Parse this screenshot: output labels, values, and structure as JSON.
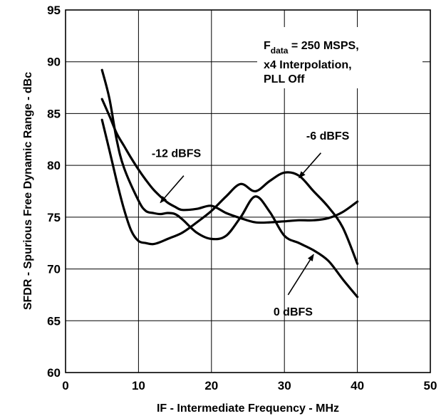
{
  "chart_data": {
    "type": "line",
    "xlabel": "IF - Intermediate Frequency - MHz",
    "ylabel": "SFDR - Spurious Free Dynamic Range - dBc",
    "xlim": [
      0,
      50
    ],
    "ylim": [
      60,
      95
    ],
    "xticks": [
      "0",
      "10",
      "20",
      "30",
      "40",
      "50"
    ],
    "yticks": [
      "60",
      "65",
      "70",
      "75",
      "80",
      "85",
      "90",
      "95"
    ],
    "grid": true,
    "condition": {
      "f_main": "F",
      "f_sub": "data",
      "f_rest": " = 250 MSPS,",
      "line2": "x4 Interpolation,",
      "line3": "PLL Off"
    },
    "series": [
      {
        "name": "0 dBFS",
        "x": [
          5,
          6,
          7,
          8,
          10,
          11,
          12,
          13,
          14,
          15,
          16,
          18,
          20,
          22,
          24,
          26,
          28,
          30,
          32,
          34,
          36,
          38,
          40
        ],
        "y": [
          89.2,
          86.5,
          82.5,
          79.8,
          76.6,
          75.6,
          75.4,
          75.3,
          75.4,
          75.3,
          74.8,
          73.5,
          72.9,
          73.2,
          75.0,
          77.0,
          75.5,
          73.2,
          72.5,
          71.8,
          70.8,
          69.0,
          67.3
        ]
      },
      {
        "name": "-6 dBFS",
        "x": [
          5,
          6,
          7,
          8,
          9,
          10,
          11,
          12,
          13,
          14,
          16,
          18,
          20,
          22,
          24,
          26,
          28,
          30,
          32,
          34,
          36,
          38,
          40
        ],
        "y": [
          84.4,
          81.5,
          78.5,
          75.8,
          73.7,
          72.7,
          72.5,
          72.4,
          72.6,
          72.9,
          73.5,
          74.5,
          75.6,
          77.0,
          78.2,
          77.5,
          78.5,
          79.3,
          79.0,
          77.5,
          76.0,
          74.0,
          70.5
        ]
      },
      {
        "name": "-12 dBFS",
        "x": [
          5,
          6,
          7,
          8,
          9,
          10,
          11,
          12,
          13,
          14,
          15,
          16,
          18,
          20,
          22,
          24,
          26,
          28,
          30,
          32,
          34,
          36,
          38,
          40
        ],
        "y": [
          86.4,
          84.8,
          83.1,
          81.9,
          80.7,
          79.6,
          78.6,
          77.7,
          77.0,
          76.4,
          76.0,
          75.7,
          75.8,
          76.1,
          75.4,
          74.9,
          74.5,
          74.5,
          74.6,
          74.7,
          74.7,
          74.9,
          75.5,
          76.5
        ]
      }
    ],
    "annotations": [
      {
        "label": "-12 dBFS",
        "text_x": 11.8,
        "text_y": 80.8,
        "arrow_from": [
          16.2,
          79.0
        ],
        "arrow_to": [
          13.0,
          76.4
        ]
      },
      {
        "label": "-6 dBFS",
        "text_x": 33.0,
        "text_y": 82.5,
        "arrow_from": [
          35.0,
          81.2
        ],
        "arrow_to": [
          32.0,
          78.8
        ]
      },
      {
        "label": "0 dBFS",
        "text_x": 28.5,
        "text_y": 65.5,
        "arrow_from": [
          30.5,
          67.5
        ],
        "arrow_to": [
          34.0,
          71.4
        ]
      }
    ]
  }
}
